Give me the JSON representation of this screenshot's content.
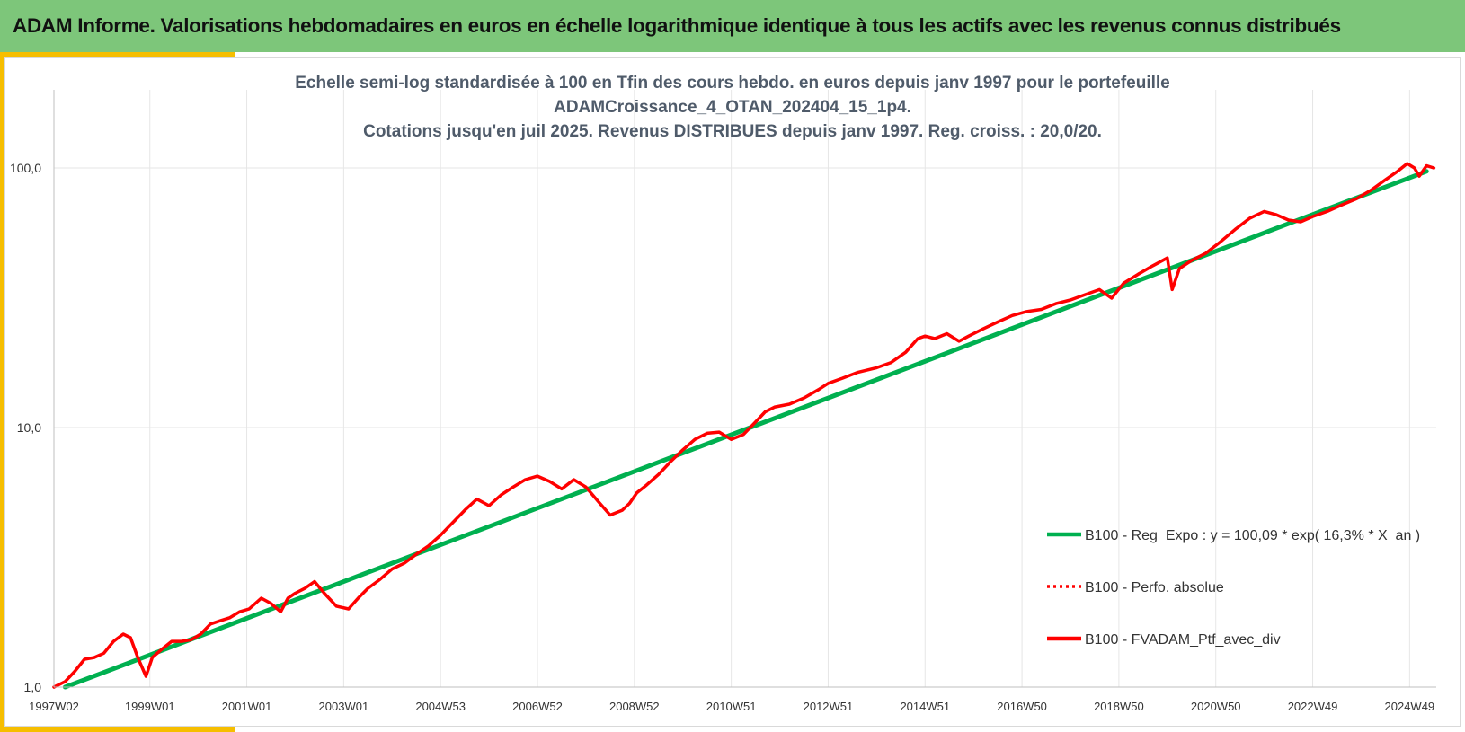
{
  "header": {
    "title": "ADAM Informe. Valorisations hebdomadaires en euros en échelle logarithmique identique à tous les actifs avec les revenus connus distribués"
  },
  "colors": {
    "header_bg": "#7dc67a",
    "accent": "#f6be00",
    "regression": "#00b050",
    "portfolio": "#ff0000",
    "title_text": "#4f5b6a"
  },
  "chart_data": {
    "type": "line",
    "title_lines": [
      "Echelle semi-log standardisée à 100 en Tfin des cours hebdo. en euros depuis janv 1997 pour le portefeuille",
      "ADAMCroissance_4_OTAN_202404_15_1p4.",
      "Cotations jusqu'en juil 2025. Revenus DISTRIBUES depuis janv 1997. Reg. croiss. : 20,0/20."
    ],
    "y_scale": "log",
    "ylim": [
      1,
      200
    ],
    "xlim": [
      1997.02,
      2025.55
    ],
    "grid": true,
    "legend_position": "right",
    "y_ticks": [
      {
        "value": 1,
        "label": "1,0"
      },
      {
        "value": 10,
        "label": "10,0"
      },
      {
        "value": 100,
        "label": "100,0"
      }
    ],
    "x_ticks": [
      {
        "value": 1997.02,
        "label": "1997W02"
      },
      {
        "value": 1999.0,
        "label": "1999W01"
      },
      {
        "value": 2001.0,
        "label": "2001W01"
      },
      {
        "value": 2003.0,
        "label": "2003W01"
      },
      {
        "value": 2005.0,
        "label": "2004W53"
      },
      {
        "value": 2007.0,
        "label": "2006W52"
      },
      {
        "value": 2009.0,
        "label": "2008W52"
      },
      {
        "value": 2011.0,
        "label": "2010W51"
      },
      {
        "value": 2013.0,
        "label": "2012W51"
      },
      {
        "value": 2015.0,
        "label": "2014W51"
      },
      {
        "value": 2017.0,
        "label": "2016W50"
      },
      {
        "value": 2019.0,
        "label": "2018W50"
      },
      {
        "value": 2021.0,
        "label": "2020W50"
      },
      {
        "value": 2023.0,
        "label": "2022W49"
      },
      {
        "value": 2025.0,
        "label": "2024W49"
      }
    ],
    "series": [
      {
        "name": "B100 - Reg_Expo : y = 100,09 * exp( 16,3% *  X_an )",
        "style": "solid",
        "color": "#00b050",
        "x": [
          1997.25,
          2025.35
        ],
        "y": [
          1.0,
          97.0
        ]
      },
      {
        "name": "B100 - Perfo. absolue",
        "style": "dotted",
        "color": "#ff0000",
        "x": [],
        "y": []
      },
      {
        "name": "B100 - FVADAM_Ptf_avec_div",
        "style": "solid",
        "color": "#ff0000",
        "x": [
          1997.02,
          1997.25,
          1997.45,
          1997.65,
          1997.85,
          1998.05,
          1998.25,
          1998.45,
          1998.6,
          1998.75,
          1998.92,
          1999.05,
          1999.25,
          1999.45,
          1999.65,
          1999.85,
          2000.05,
          2000.25,
          2000.45,
          2000.65,
          2000.85,
          2001.05,
          2001.3,
          2001.5,
          2001.7,
          2001.85,
          2002.0,
          2002.2,
          2002.4,
          2002.6,
          2002.85,
          2003.1,
          2003.3,
          2003.5,
          2003.75,
          2004.0,
          2004.25,
          2004.5,
          2004.75,
          2005.0,
          2005.25,
          2005.5,
          2005.75,
          2006.0,
          2006.25,
          2006.5,
          2006.75,
          2007.0,
          2007.25,
          2007.5,
          2007.75,
          2008.0,
          2008.25,
          2008.5,
          2008.75,
          2008.9,
          2009.05,
          2009.25,
          2009.5,
          2009.75,
          2010.0,
          2010.25,
          2010.5,
          2010.75,
          2011.0,
          2011.25,
          2011.5,
          2011.7,
          2011.9,
          2012.2,
          2012.5,
          2012.8,
          2013.0,
          2013.3,
          2013.6,
          2014.0,
          2014.3,
          2014.6,
          2014.85,
          2015.0,
          2015.2,
          2015.45,
          2015.7,
          2015.9,
          2016.2,
          2016.5,
          2016.8,
          2017.1,
          2017.4,
          2017.7,
          2018.0,
          2018.3,
          2018.6,
          2018.85,
          2019.1,
          2019.4,
          2019.7,
          2020.0,
          2020.1,
          2020.25,
          2020.5,
          2020.8,
          2021.1,
          2021.4,
          2021.7,
          2022.0,
          2022.25,
          2022.5,
          2022.75,
          2023.0,
          2023.3,
          2023.6,
          2023.9,
          2024.2,
          2024.5,
          2024.75,
          2024.95,
          2025.1,
          2025.2,
          2025.35,
          2025.5
        ],
        "y": [
          1.0,
          1.05,
          1.15,
          1.28,
          1.3,
          1.35,
          1.5,
          1.6,
          1.55,
          1.3,
          1.1,
          1.3,
          1.4,
          1.5,
          1.5,
          1.52,
          1.6,
          1.75,
          1.8,
          1.85,
          1.95,
          2.0,
          2.2,
          2.1,
          1.95,
          2.2,
          2.3,
          2.4,
          2.55,
          2.3,
          2.05,
          2.0,
          2.2,
          2.4,
          2.6,
          2.85,
          3.0,
          3.25,
          3.5,
          3.85,
          4.3,
          4.8,
          5.3,
          5.0,
          5.5,
          5.9,
          6.3,
          6.5,
          6.2,
          5.8,
          6.3,
          5.9,
          5.2,
          4.6,
          4.8,
          5.1,
          5.6,
          6.0,
          6.6,
          7.4,
          8.2,
          9.0,
          9.5,
          9.6,
          9.0,
          9.4,
          10.5,
          11.5,
          12.0,
          12.3,
          13.0,
          14.0,
          14.8,
          15.5,
          16.3,
          17.0,
          17.8,
          19.5,
          22.0,
          22.5,
          22.0,
          23.0,
          21.5,
          22.5,
          24.0,
          25.5,
          27.0,
          28.0,
          28.5,
          30.0,
          31.0,
          32.5,
          34.0,
          31.5,
          36.0,
          39.0,
          42.0,
          45.0,
          34.0,
          41.0,
          44.0,
          47.0,
          52.0,
          58.0,
          64.0,
          68.0,
          66.0,
          63.0,
          62.0,
          65.0,
          68.0,
          72.0,
          76.0,
          82.0,
          90.0,
          97.0,
          104.0,
          100.0,
          93.0,
          102.0,
          100.0
        ]
      }
    ]
  }
}
